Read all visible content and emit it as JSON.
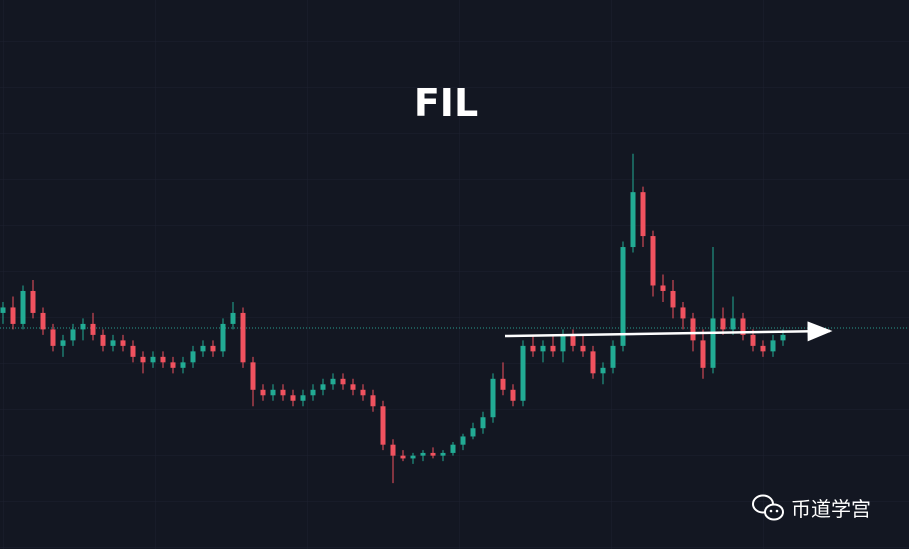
{
  "chart_data": {
    "type": "candlestick",
    "title": "FIL",
    "watermark": "币道学宫",
    "up_color": "#22ab94",
    "down_color": "#f0525f",
    "ylim": [
      0,
      100
    ],
    "ohlc": [
      [
        43,
        45,
        41,
        44
      ],
      [
        44,
        46,
        40,
        41
      ],
      [
        41,
        48,
        40,
        47
      ],
      [
        47,
        49,
        42,
        43
      ],
      [
        43,
        44,
        39,
        40
      ],
      [
        40,
        41,
        36,
        37
      ],
      [
        37,
        39,
        35,
        38
      ],
      [
        38,
        41,
        37,
        40
      ],
      [
        40,
        42,
        38,
        41
      ],
      [
        41,
        43,
        38,
        39
      ],
      [
        39,
        40,
        36,
        37
      ],
      [
        37,
        39,
        36,
        38
      ],
      [
        38,
        39,
        36,
        37
      ],
      [
        37,
        38,
        34,
        35
      ],
      [
        35,
        36,
        32,
        34
      ],
      [
        34,
        36,
        33,
        35
      ],
      [
        35,
        36,
        33,
        34
      ],
      [
        34,
        35,
        32,
        33
      ],
      [
        33,
        35,
        32,
        34
      ],
      [
        34,
        37,
        33,
        36
      ],
      [
        36,
        38,
        35,
        37
      ],
      [
        37,
        38,
        35,
        36
      ],
      [
        36,
        42,
        35,
        41
      ],
      [
        41,
        45,
        40,
        43
      ],
      [
        43,
        44,
        33,
        34
      ],
      [
        34,
        35,
        26,
        29
      ],
      [
        29,
        30,
        27,
        28
      ],
      [
        28,
        30,
        27,
        29
      ],
      [
        29,
        30,
        27,
        28
      ],
      [
        28,
        29,
        26,
        27
      ],
      [
        27,
        29,
        26,
        28
      ],
      [
        28,
        30,
        27,
        29
      ],
      [
        29,
        31,
        28,
        30
      ],
      [
        30,
        32,
        29,
        31
      ],
      [
        31,
        32,
        29,
        30
      ],
      [
        30,
        31,
        28,
        29
      ],
      [
        29,
        30,
        27,
        28
      ],
      [
        28,
        29,
        25,
        26
      ],
      [
        26,
        27,
        18,
        19
      ],
      [
        19,
        20,
        12,
        17
      ],
      [
        17,
        18,
        16,
        16.5
      ],
      [
        16.5,
        17.5,
        15.5,
        17
      ],
      [
        17,
        18,
        16,
        17.5
      ],
      [
        17.5,
        18.5,
        16.5,
        17
      ],
      [
        17,
        18,
        16,
        17.5
      ],
      [
        17.5,
        19.5,
        17,
        19
      ],
      [
        19,
        21,
        18,
        20.5
      ],
      [
        20.5,
        23,
        20,
        22
      ],
      [
        22,
        25,
        21,
        24
      ],
      [
        24,
        32,
        23,
        31
      ],
      [
        31,
        34,
        28,
        29
      ],
      [
        29,
        30,
        26,
        27
      ],
      [
        27,
        38,
        26,
        37
      ],
      [
        37,
        39,
        35,
        36
      ],
      [
        36,
        38,
        34,
        37
      ],
      [
        37,
        39,
        35,
        36
      ],
      [
        36,
        40,
        34,
        39
      ],
      [
        39,
        40,
        36,
        37
      ],
      [
        37,
        39,
        35,
        36
      ],
      [
        36,
        37,
        31,
        32
      ],
      [
        32,
        34,
        30,
        33
      ],
      [
        33,
        38,
        32,
        37
      ],
      [
        37,
        56,
        36,
        55
      ],
      [
        55,
        72,
        54,
        65
      ],
      [
        65,
        66,
        55,
        57
      ],
      [
        57,
        58,
        46,
        48
      ],
      [
        48,
        50,
        45,
        47
      ],
      [
        47,
        49,
        42,
        44
      ],
      [
        44,
        45,
        40,
        42
      ],
      [
        42,
        43,
        36,
        38
      ],
      [
        38,
        40,
        31,
        33
      ],
      [
        33,
        55,
        32,
        42
      ],
      [
        42,
        44,
        39,
        40
      ],
      [
        40,
        46,
        39,
        42
      ],
      [
        42,
        43,
        38,
        39
      ],
      [
        39,
        40,
        36,
        37
      ],
      [
        37,
        38,
        35,
        36
      ],
      [
        36,
        39,
        35,
        38
      ],
      [
        38,
        40,
        37,
        39
      ]
    ]
  }
}
